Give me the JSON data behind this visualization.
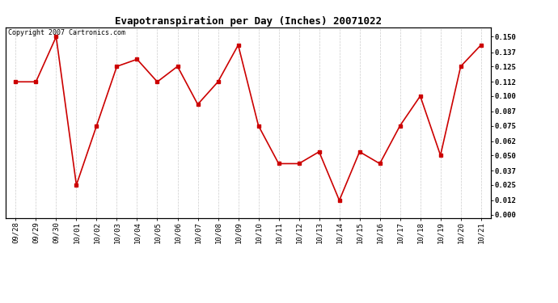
{
  "title": "Evapotranspiration per Day (Inches) 20071022",
  "copyright_text": "Copyright 2007 Cartronics.com",
  "x_labels": [
    "09/28",
    "09/29",
    "09/30",
    "10/01",
    "10/02",
    "10/03",
    "10/04",
    "10/05",
    "10/06",
    "10/07",
    "10/08",
    "10/09",
    "10/10",
    "10/11",
    "10/12",
    "10/13",
    "10/14",
    "10/15",
    "10/16",
    "10/17",
    "10/18",
    "10/19",
    "10/20",
    "10/21"
  ],
  "y_values": [
    0.112,
    0.112,
    0.15,
    0.025,
    0.075,
    0.125,
    0.131,
    0.112,
    0.125,
    0.093,
    0.112,
    0.143,
    0.075,
    0.043,
    0.043,
    0.053,
    0.012,
    0.053,
    0.043,
    0.075,
    0.1,
    0.05,
    0.125,
    0.143
  ],
  "line_color": "#cc0000",
  "marker": "s",
  "marker_size": 3,
  "background_color": "#ffffff",
  "grid_color": "#cccccc",
  "y_ticks": [
    0.0,
    0.012,
    0.025,
    0.037,
    0.05,
    0.062,
    0.075,
    0.087,
    0.1,
    0.112,
    0.125,
    0.137,
    0.15
  ],
  "ylim": [
    -0.003,
    0.158
  ],
  "title_fontsize": 9,
  "tick_fontsize": 6.5,
  "copyright_fontsize": 6
}
